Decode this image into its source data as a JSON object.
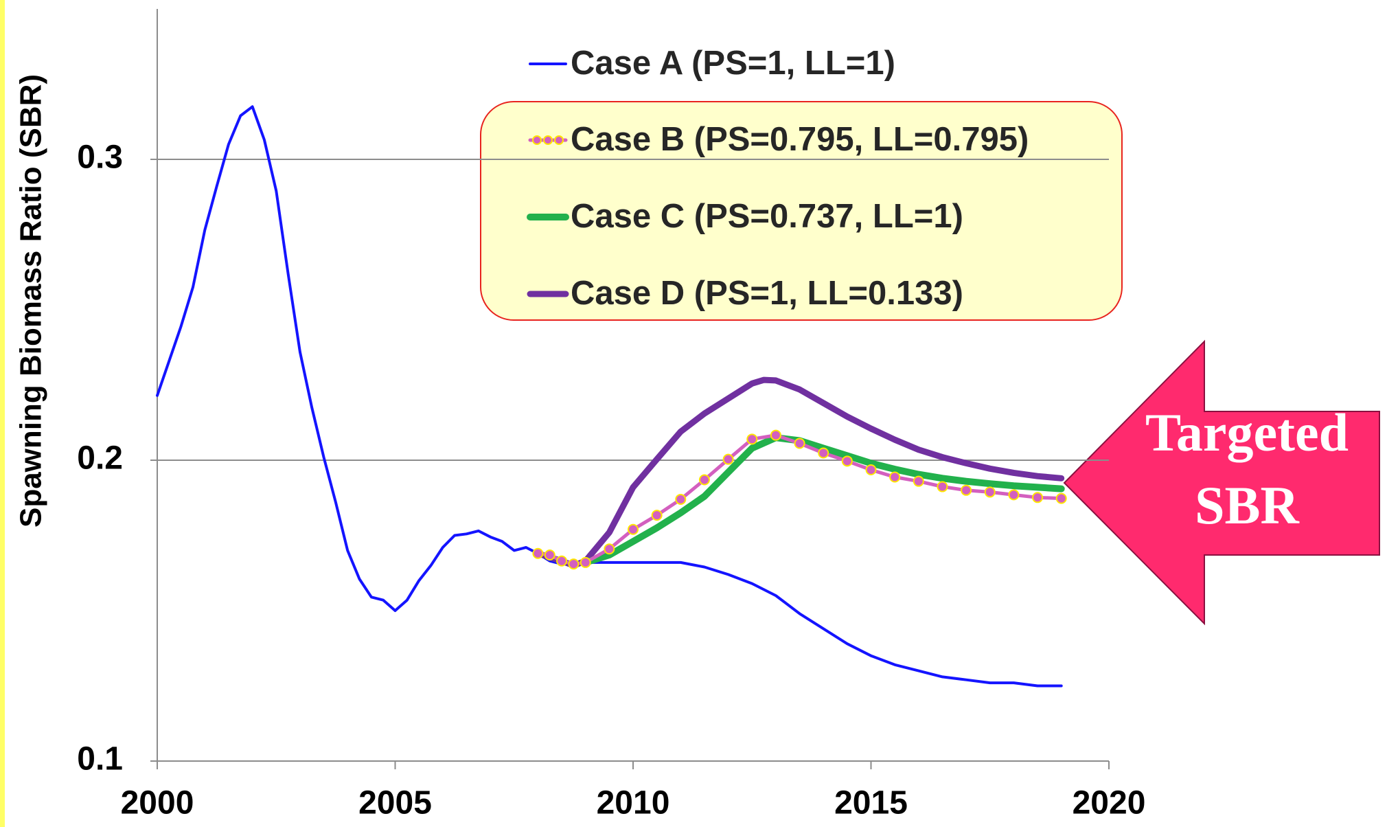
{
  "chart_data": {
    "type": "line",
    "y_label": "Spawning Biomass Ratio (SBR)",
    "xlim": [
      2000,
      2020
    ],
    "xticks": [
      2000,
      2005,
      2010,
      2015,
      2020
    ],
    "ylim": [
      0.1,
      0.35
    ],
    "yticks": [
      0.1,
      0.2,
      0.3
    ],
    "grid": true,
    "annotation": [
      "Targeted",
      "SBR"
    ],
    "series": [
      {
        "name": "Case A (PS=1, LL=1)",
        "color": "#1414ff",
        "x": [
          2000,
          2000.25,
          2000.5,
          2000.75,
          2001,
          2001.25,
          2001.5,
          2001.75,
          2002,
          2002.25,
          2002.5,
          2002.75,
          2003,
          2003.25,
          2003.5,
          2003.75,
          2004,
          2004.25,
          2004.5,
          2004.75,
          2005,
          2005.25,
          2005.5,
          2005.75,
          2006,
          2006.25,
          2006.5,
          2006.75,
          2007,
          2007.25,
          2007.5,
          2007.75,
          2008,
          2008.25,
          2008.5,
          2008.75,
          2009,
          2010,
          2011,
          2011.5,
          2012,
          2012.5,
          2013,
          2013.5,
          2014,
          2014.5,
          2015,
          2015.5,
          2016,
          2016.5,
          2017,
          2017.5,
          2018,
          2018.5,
          2019
        ],
        "values": [
          0.2215,
          0.233,
          0.2445,
          0.2575,
          0.2765,
          0.291,
          0.305,
          0.3145,
          0.3175,
          0.3065,
          0.2895,
          0.262,
          0.236,
          0.2175,
          0.201,
          0.186,
          0.17,
          0.1605,
          0.1545,
          0.1535,
          0.15,
          0.1535,
          0.16,
          0.165,
          0.171,
          0.175,
          0.1755,
          0.1765,
          0.1745,
          0.173,
          0.17,
          0.171,
          0.169,
          0.1665,
          0.1655,
          0.166,
          0.166,
          0.166,
          0.166,
          0.1645,
          0.162,
          0.159,
          0.155,
          0.149,
          0.144,
          0.139,
          0.135,
          0.132,
          0.13,
          0.128,
          0.127,
          0.126,
          0.126,
          0.125,
          0.125
        ]
      },
      {
        "name": "Case B (PS=0.795, LL=0.795)",
        "color": "#d35fbf",
        "x": [
          2008,
          2008.25,
          2008.5,
          2008.75,
          2009,
          2009.5,
          2010,
          2010.5,
          2011,
          2011.5,
          2012,
          2012.5,
          2013,
          2013.5,
          2014,
          2014.5,
          2015,
          2015.5,
          2016,
          2016.5,
          2017,
          2017.5,
          2018,
          2018.5,
          2019
        ],
        "values": [
          0.169,
          0.1685,
          0.1665,
          0.1655,
          0.166,
          0.1705,
          0.177,
          0.1817,
          0.187,
          0.1935,
          0.2003,
          0.207,
          0.2083,
          0.2056,
          0.2024,
          0.1997,
          0.1968,
          0.1944,
          0.193,
          0.1912,
          0.19,
          0.1894,
          0.1885,
          0.1876,
          0.1873
        ]
      },
      {
        "name": "Case C (PS=0.737, LL=1)",
        "color": "#22b14c",
        "x": [
          2009,
          2009.5,
          2010,
          2010.5,
          2011,
          2011.5,
          2012,
          2012.5,
          2013,
          2013.5,
          2014,
          2014.5,
          2015,
          2015.5,
          2016,
          2016.5,
          2017,
          2017.5,
          2018,
          2018.5,
          2019
        ],
        "values": [
          0.166,
          0.1685,
          0.173,
          0.1775,
          0.1825,
          0.188,
          0.196,
          0.204,
          0.2075,
          0.2065,
          0.204,
          0.2015,
          0.199,
          0.197,
          0.1953,
          0.194,
          0.193,
          0.1922,
          0.1915,
          0.191,
          0.1905
        ]
      },
      {
        "name": "Case D (PS=1, LL=0.133)",
        "color": "#7030a0",
        "x": [
          2008,
          2008.5,
          2008.75,
          2009,
          2009.5,
          2010,
          2010.5,
          2011,
          2011.5,
          2012,
          2012.5,
          2012.75,
          2013,
          2013.5,
          2014,
          2014.5,
          2015,
          2015.5,
          2016,
          2016.5,
          2017,
          2017.5,
          2018,
          2018.5,
          2019
        ],
        "values": [
          0.169,
          0.1665,
          0.165,
          0.1665,
          0.176,
          0.191,
          0.2003,
          0.2095,
          0.2155,
          0.2205,
          0.2255,
          0.2267,
          0.2265,
          0.2235,
          0.219,
          0.2145,
          0.2105,
          0.2068,
          0.2035,
          0.201,
          0.199,
          0.1972,
          0.1958,
          0.1947,
          0.194
        ]
      }
    ]
  }
}
